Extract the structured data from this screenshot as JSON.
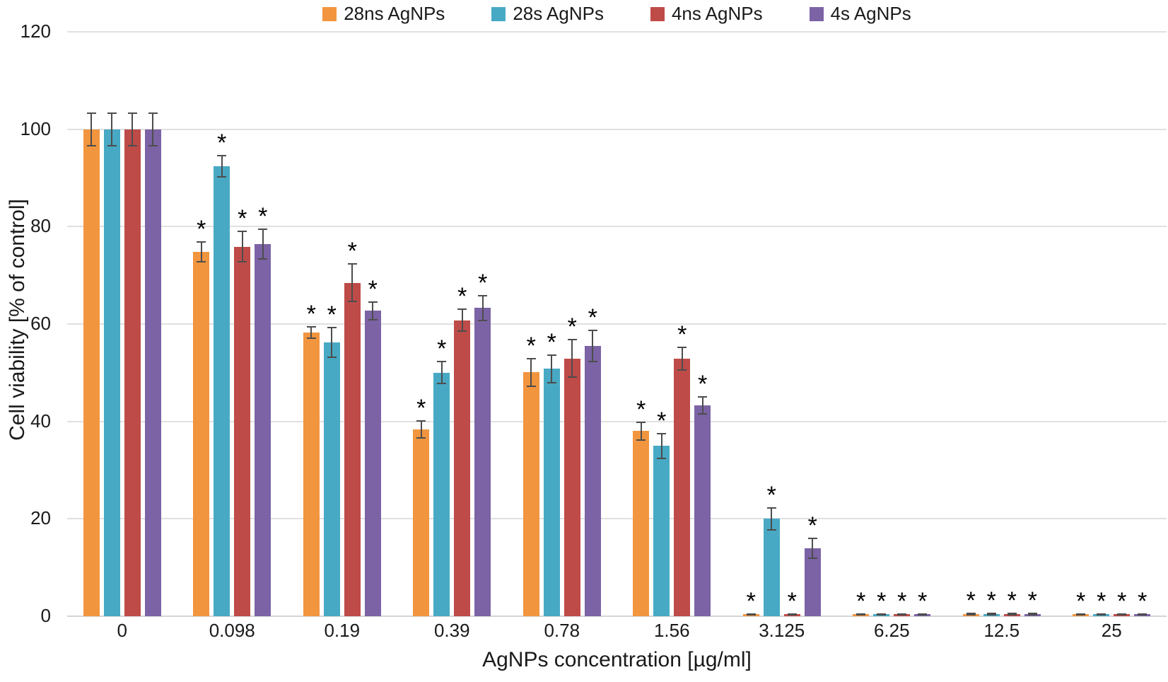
{
  "chart_data": {
    "type": "bar",
    "title": "",
    "xlabel": "AgNPs concentration [µg/ml]",
    "ylabel": "Cell viability [% of control]",
    "ylim": [
      0,
      120
    ],
    "yticks": [
      0,
      20,
      40,
      60,
      80,
      100,
      120
    ],
    "grid": true,
    "legend_position": "top-center",
    "significance_marker": "*",
    "categories": [
      "0",
      "0.098",
      "0.19",
      "0.39",
      "0.78",
      "1.56",
      "3.125",
      "6.25",
      "12.5",
      "25"
    ],
    "series": [
      {
        "name": "28ns AgNPs",
        "color": "#F2953F",
        "values": [
          100,
          74.8,
          58.2,
          38.3,
          50.1,
          38.0,
          0.4,
          0.4,
          0.5,
          0.4
        ],
        "errors": [
          3.5,
          2.2,
          1.3,
          1.9,
          3.0,
          2.0,
          0.25,
          0.25,
          0.3,
          0.25
        ],
        "significant": [
          false,
          true,
          true,
          true,
          true,
          true,
          true,
          true,
          true,
          true
        ]
      },
      {
        "name": "28s AgNPs",
        "color": "#48A9C4",
        "values": [
          100,
          92.4,
          56.2,
          50.0,
          50.8,
          35.0,
          20.0,
          0.4,
          0.5,
          0.4
        ],
        "errors": [
          3.5,
          2.3,
          3.2,
          2.4,
          3.0,
          2.7,
          2.4,
          0.25,
          0.3,
          0.25
        ],
        "significant": [
          false,
          true,
          true,
          true,
          true,
          true,
          true,
          true,
          true,
          true
        ]
      },
      {
        "name": "4ns AgNPs",
        "color": "#BE4B48",
        "values": [
          100,
          75.9,
          68.5,
          60.8,
          52.9,
          52.9,
          0.4,
          0.4,
          0.5,
          0.4
        ],
        "errors": [
          3.5,
          3.3,
          4.0,
          2.4,
          4.0,
          2.5,
          0.25,
          0.25,
          0.3,
          0.25
        ],
        "significant": [
          false,
          true,
          true,
          true,
          true,
          true,
          true,
          true,
          true,
          true
        ]
      },
      {
        "name": "4s AgNPs",
        "color": "#7B63A5",
        "values": [
          100,
          76.4,
          62.7,
          63.3,
          55.5,
          43.3,
          14.0,
          0.4,
          0.5,
          0.4
        ],
        "errors": [
          3.5,
          3.2,
          1.9,
          2.7,
          3.4,
          1.9,
          2.2,
          0.25,
          0.3,
          0.25
        ],
        "significant": [
          false,
          true,
          true,
          true,
          true,
          true,
          true,
          true,
          true,
          true
        ]
      }
    ]
  }
}
